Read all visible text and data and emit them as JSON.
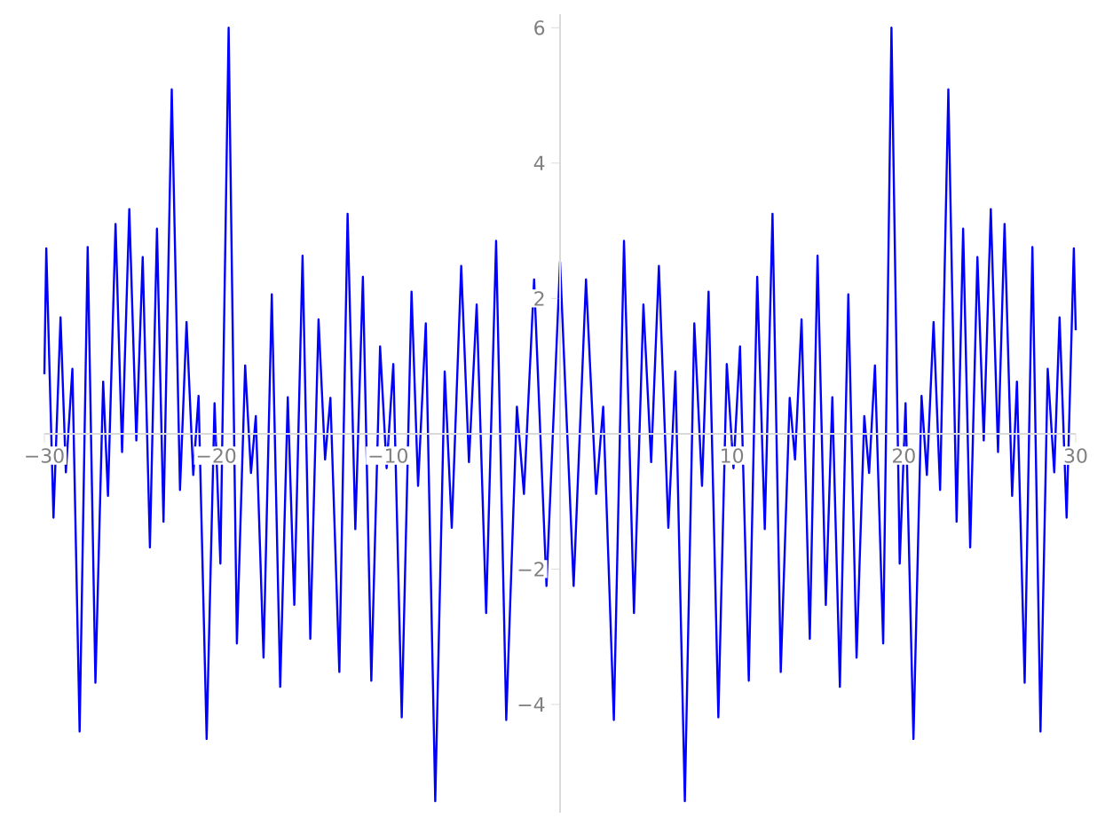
{
  "chart_data": {
    "type": "line",
    "x": [
      -30,
      -29.89,
      -29.47,
      -29.06,
      -28.75,
      -28.37,
      -27.95,
      -27.48,
      -27.03,
      -26.58,
      -26.3,
      -25.86,
      -25.48,
      -25.06,
      -24.65,
      -24.28,
      -23.86,
      -23.45,
      -23.07,
      -22.59,
      -22.11,
      -21.73,
      -21.34,
      -21.03,
      -20.56,
      -20.1,
      -19.76,
      -19.28,
      -18.8,
      -18.32,
      -17.98,
      -17.7,
      -17.25,
      -16.77,
      -16.28,
      -15.84,
      -15.46,
      -14.98,
      -14.53,
      -14.05,
      -13.67,
      -13.36,
      -12.84,
      -12.36,
      -11.91,
      -11.47,
      -10.98,
      -10.47,
      -10.09,
      -9.7,
      -9.21,
      -8.64,
      -8.26,
      -7.81,
      -7.26,
      -6.71,
      -6.3,
      -5.75,
      -5.3,
      -4.85,
      -4.3,
      -3.72,
      -3.13,
      -2.51,
      -2.1,
      -1.51,
      -0.79,
      0,
      0.79,
      1.51,
      2.1,
      2.51,
      3.13,
      3.72,
      4.3,
      4.85,
      5.3,
      5.75,
      6.3,
      6.71,
      7.26,
      7.81,
      8.26,
      8.64,
      9.21,
      9.7,
      10.09,
      10.47,
      10.98,
      11.47,
      11.91,
      12.36,
      12.84,
      13.36,
      13.67,
      14.05,
      14.53,
      14.98,
      15.46,
      15.84,
      16.28,
      16.77,
      17.25,
      17.7,
      17.98,
      18.32,
      18.8,
      19.28,
      19.76,
      20.1,
      20.56,
      21.03,
      21.34,
      21.73,
      22.11,
      22.59,
      23.07,
      23.45,
      23.86,
      24.28,
      24.65,
      25.06,
      25.48,
      25.86,
      26.3,
      26.58,
      27.03,
      27.48,
      27.95,
      28.37,
      28.75,
      29.06,
      29.47,
      29.89,
      30
    ],
    "series": [
      {
        "color": "#0000ff",
        "values": [
          0.88,
          2.74,
          -1.24,
          1.72,
          -0.57,
          0.96,
          -4.4,
          2.76,
          -3.68,
          0.77,
          -0.92,
          3.1,
          -0.27,
          3.32,
          -0.1,
          2.61,
          -1.68,
          3.03,
          -1.3,
          5.09,
          -0.83,
          1.65,
          -0.61,
          0.56,
          -4.51,
          0.45,
          -1.92,
          6.0,
          -3.1,
          1.01,
          -0.58,
          0.26,
          -3.31,
          2.06,
          -3.74,
          0.54,
          -2.53,
          2.63,
          -3.03,
          1.69,
          -0.38,
          0.53,
          -3.52,
          3.25,
          -1.41,
          2.32,
          -3.65,
          1.29,
          -0.51,
          1.03,
          -4.19,
          2.1,
          -0.77,
          1.63,
          -5.43,
          0.92,
          -1.39,
          2.48,
          -0.42,
          1.91,
          -2.65,
          2.85,
          -4.23,
          0.4,
          -0.89,
          2.28,
          -2.25,
          2.54,
          -2.25,
          2.28,
          -0.89,
          0.4,
          -4.23,
          2.85,
          -2.65,
          1.91,
          -0.42,
          2.48,
          -1.39,
          0.92,
          -5.43,
          1.63,
          -0.77,
          2.1,
          -4.19,
          1.03,
          -0.51,
          1.29,
          -3.65,
          2.32,
          -1.41,
          3.25,
          -3.52,
          0.53,
          -0.38,
          1.69,
          -3.03,
          2.63,
          -2.53,
          0.54,
          -3.74,
          2.06,
          -3.31,
          0.26,
          -0.58,
          1.01,
          -3.1,
          6.0,
          -1.92,
          0.45,
          -4.51,
          0.56,
          -0.61,
          1.65,
          -0.83,
          5.09,
          -1.3,
          3.03,
          -1.68,
          2.61,
          -0.1,
          3.32,
          -0.27,
          3.1,
          -0.92,
          0.77,
          -3.68,
          2.76,
          -4.4,
          0.96,
          -0.57,
          1.72,
          -1.24,
          2.74,
          1.53
        ]
      }
    ],
    "xlim": [
      -30,
      30
    ],
    "ylim": [
      -5.6,
      6.2
    ],
    "xticks": [
      {
        "value": -30,
        "label": "−30"
      },
      {
        "value": -20,
        "label": "−20"
      },
      {
        "value": -10,
        "label": "−10"
      },
      10,
      20,
      30
    ],
    "yticks": [
      {
        "value": -4,
        "label": "−4"
      },
      {
        "value": -2,
        "label": "−2"
      },
      2,
      4,
      6
    ],
    "grid": false,
    "marker": "none",
    "line_style": "solid"
  }
}
